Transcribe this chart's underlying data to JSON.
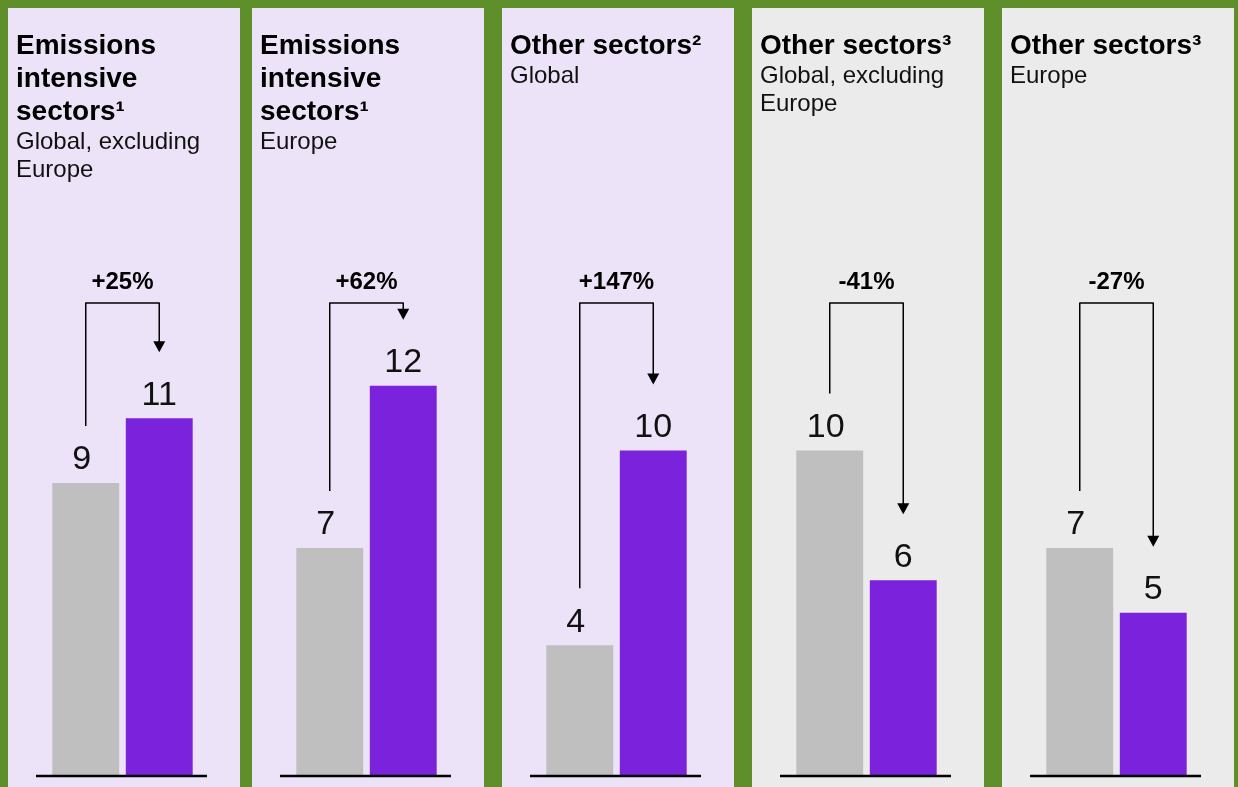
{
  "chart_data": [
    {
      "type": "bar",
      "title": "Emissions intensive sectors¹",
      "subtitle": "Global, excluding Europe",
      "categories": [
        null,
        null
      ],
      "values": [
        9,
        11
      ],
      "colors": [
        "#bfbfbf",
        "#7b22dd"
      ],
      "data_labels": true,
      "annotations": [
        "+25%"
      ]
    },
    {
      "type": "bar",
      "title": "Emissions intensive sectors¹",
      "subtitle": "Europe",
      "categories": [
        null,
        null
      ],
      "values": [
        7,
        12
      ],
      "colors": [
        "#bfbfbf",
        "#7b22dd"
      ],
      "data_labels": true,
      "annotations": [
        "+62%"
      ]
    },
    {
      "type": "bar",
      "title": "Other sectors²",
      "subtitle": "Global",
      "categories": [
        null,
        null
      ],
      "values": [
        4,
        10
      ],
      "colors": [
        "#bfbfbf",
        "#7b22dd"
      ],
      "data_labels": true,
      "annotations": [
        "+147%"
      ]
    },
    {
      "type": "bar",
      "title": "Other sectors³",
      "subtitle": "Global, excluding Europe",
      "categories": [
        null,
        null
      ],
      "values": [
        10,
        6
      ],
      "colors": [
        "#bfbfbf",
        "#7b22dd"
      ],
      "data_labels": true,
      "annotations": [
        "-41%"
      ]
    },
    {
      "type": "bar",
      "title": "Other sectors³",
      "subtitle": "Europe",
      "categories": [
        null,
        null
      ],
      "values": [
        7,
        5
      ],
      "colors": [
        "#bfbfbf",
        "#7b22dd"
      ],
      "data_labels": true,
      "annotations": [
        "-27%"
      ]
    }
  ]
}
